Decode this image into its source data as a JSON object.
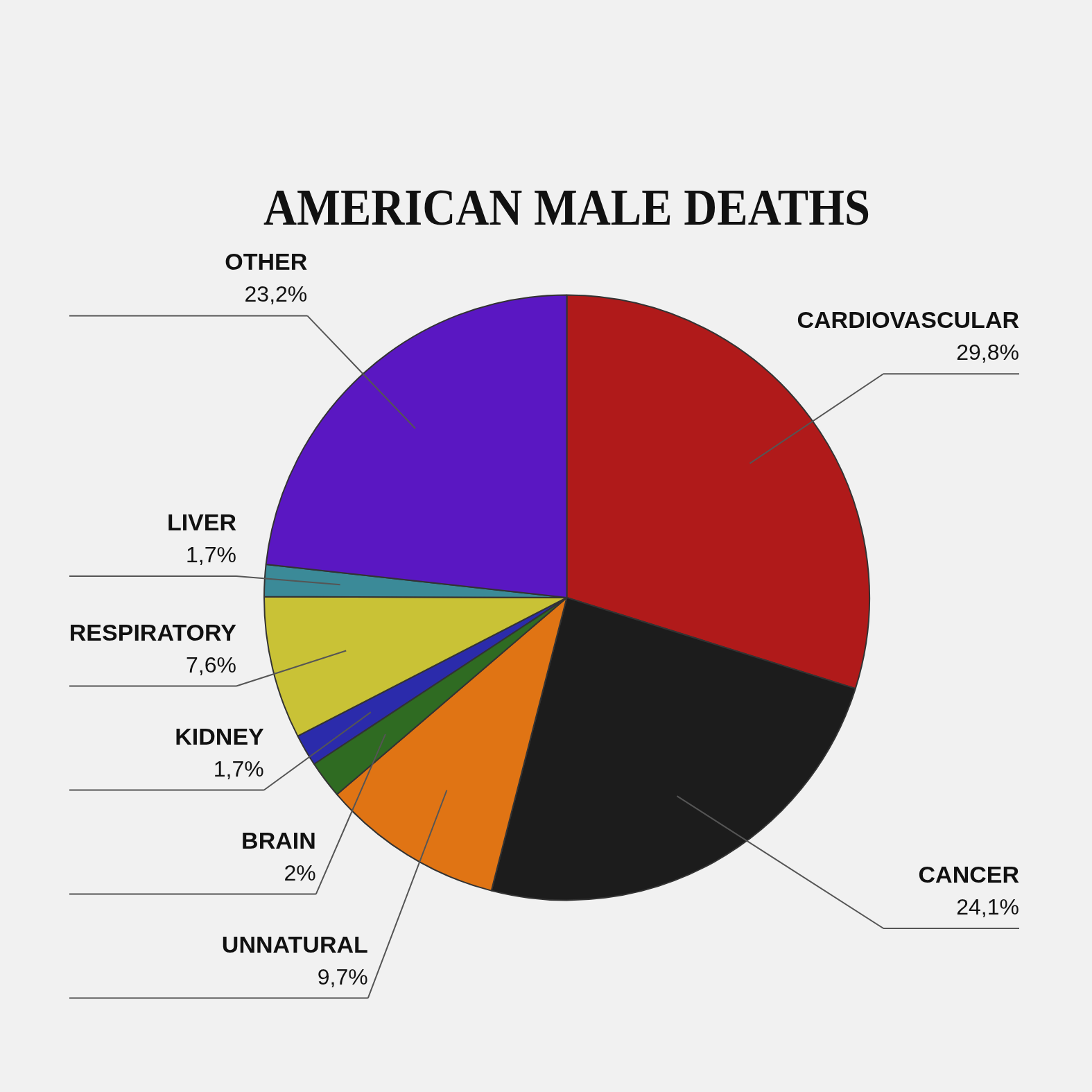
{
  "chart_data": {
    "type": "pie",
    "title": "AMERICAN MALE DEATHS",
    "categories": [
      "CARDIOVASCULAR",
      "CANCER",
      "UNNATURAL",
      "BRAIN",
      "KIDNEY",
      "RESPIRATORY",
      "LIVER",
      "OTHER"
    ],
    "values": [
      29.8,
      24.1,
      9.7,
      2,
      1.7,
      7.6,
      1.7,
      23.2
    ],
    "value_labels": [
      "29,8%",
      "24,1%",
      "9,7%",
      "2%",
      "1,7%",
      "7,6%",
      "1,7%",
      "23,2%"
    ],
    "colors": [
      "#b01a1a",
      "#1c1c1c",
      "#e07414",
      "#2f6b22",
      "#2b2bab",
      "#c9c236",
      "#3b8a98",
      "#5a17c2"
    ]
  }
}
